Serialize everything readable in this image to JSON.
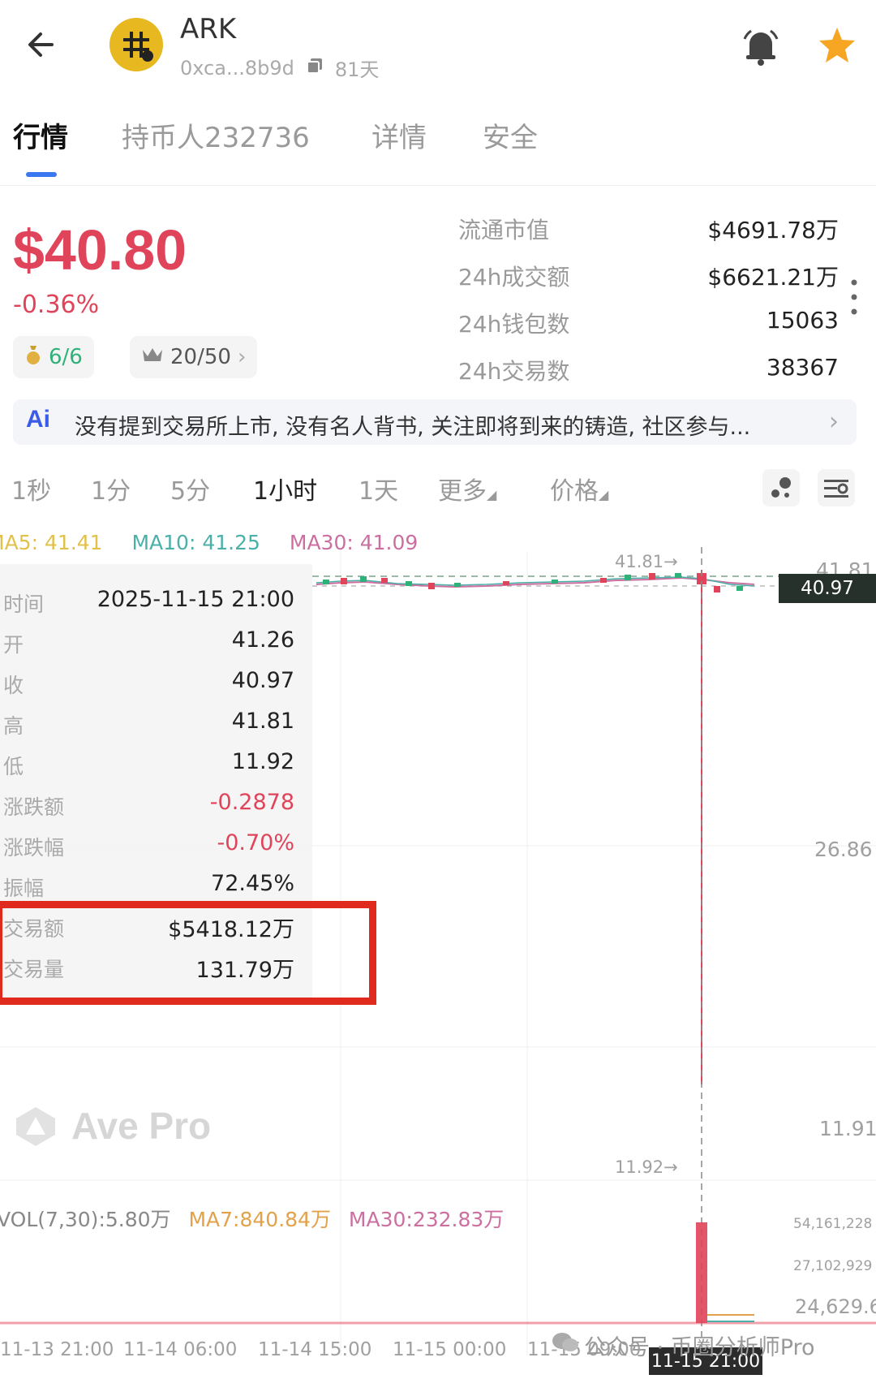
{
  "header": {
    "title": "ARK",
    "address": "0xca...8b9d",
    "age": "81天",
    "icons": [
      "back-arrow-icon",
      "token-logo",
      "copy-icon",
      "bell-icon",
      "star-icon"
    ]
  },
  "tabs": [
    {
      "label": "行情",
      "active": true
    },
    {
      "label": "持币人232736",
      "active": false
    },
    {
      "label": "详情",
      "active": false
    },
    {
      "label": "安全",
      "active": false
    }
  ],
  "price": {
    "value": "$40.80",
    "change": "-0.36%",
    "badge1": "6/6",
    "badge2": "20/50",
    "badge2_arrow": "›"
  },
  "stats": [
    {
      "label": "流通市值",
      "value": "$4691.78万"
    },
    {
      "label": "24h成交额",
      "value": "$6621.21万"
    },
    {
      "label": "24h钱包数",
      "value": "15063"
    },
    {
      "label": "24h交易数",
      "value": "38367"
    }
  ],
  "ai": {
    "icon_text": "Ai",
    "text": "没有提到交易所上市, 没有名人背书, 关注即将到来的铸造, 社区参与...",
    "arrow": "›"
  },
  "intervals": [
    {
      "label": "1秒",
      "active": false
    },
    {
      "label": "1分",
      "active": false
    },
    {
      "label": "5分",
      "active": false
    },
    {
      "label": "1小时",
      "active": true
    },
    {
      "label": "1天",
      "active": false
    },
    {
      "label": "更多",
      "active": false
    },
    {
      "label": "价格",
      "active": false
    }
  ],
  "ma": {
    "ma5": "MA5: 41.41",
    "ma10": "MA10: 41.25",
    "ma30": "MA30: 41.09"
  },
  "tooltip": [
    {
      "label": "时间",
      "value": "2025-11-15 21:00",
      "color": "#222222"
    },
    {
      "label": "开",
      "value": "41.26",
      "color": "#222222"
    },
    {
      "label": "收",
      "value": "40.97",
      "color": "#222222"
    },
    {
      "label": "高",
      "value": "41.81",
      "color": "#222222"
    },
    {
      "label": "低",
      "value": "11.92",
      "color": "#222222"
    },
    {
      "label": "涨跌额",
      "value": "-0.2878",
      "color": "#e0445a"
    },
    {
      "label": "涨跌幅",
      "value": "-0.70%",
      "color": "#e0445a"
    },
    {
      "label": "振幅",
      "value": "72.45%",
      "color": "#222222"
    },
    {
      "label": "交易额",
      "value": "$5418.12万",
      "color": "#222222"
    },
    {
      "label": "交易量",
      "value": "131.79万",
      "color": "#222222"
    }
  ],
  "chart": {
    "axis": {
      "top": "41.81",
      "mid": "26.86",
      "low": "11.91",
      "current_price": "40.97",
      "high_marker": "41.81→",
      "low_marker": "11.92→"
    },
    "watermark": "Ave Pro",
    "volume": {
      "vol": "VOL(7,30):5.80万",
      "ma7": "MA7:840.84万",
      "ma30": "MA30:232.83万",
      "axis1": "54,161,228",
      "axis2": "27,102,929",
      "axis3": "24,629.6"
    },
    "times": [
      "11-13 21:00",
      "11-14 06:00",
      "11-14 15:00",
      "11-15 00:00",
      "11-15 09:00"
    ],
    "crosshair_time": "11-15 21:00"
  },
  "footer": {
    "wechat": "公众号 · 币圈分析师Pro"
  },
  "colors": {
    "up": "#2fb17a",
    "down": "#e0445a",
    "accent": "#3a78f2",
    "highlight": "#e02a1d"
  },
  "chart_data": {
    "type": "candlestick",
    "interval": "1小时",
    "selected_candle": {
      "time": "2025-11-15 21:00",
      "open": 41.26,
      "close": 40.97,
      "high": 41.81,
      "low": 11.92
    },
    "ylim": [
      11.91,
      41.81
    ],
    "x_ticks": [
      "11-13 21:00",
      "11-14 06:00",
      "11-14 15:00",
      "11-15 00:00",
      "11-15 09:00"
    ]
  }
}
